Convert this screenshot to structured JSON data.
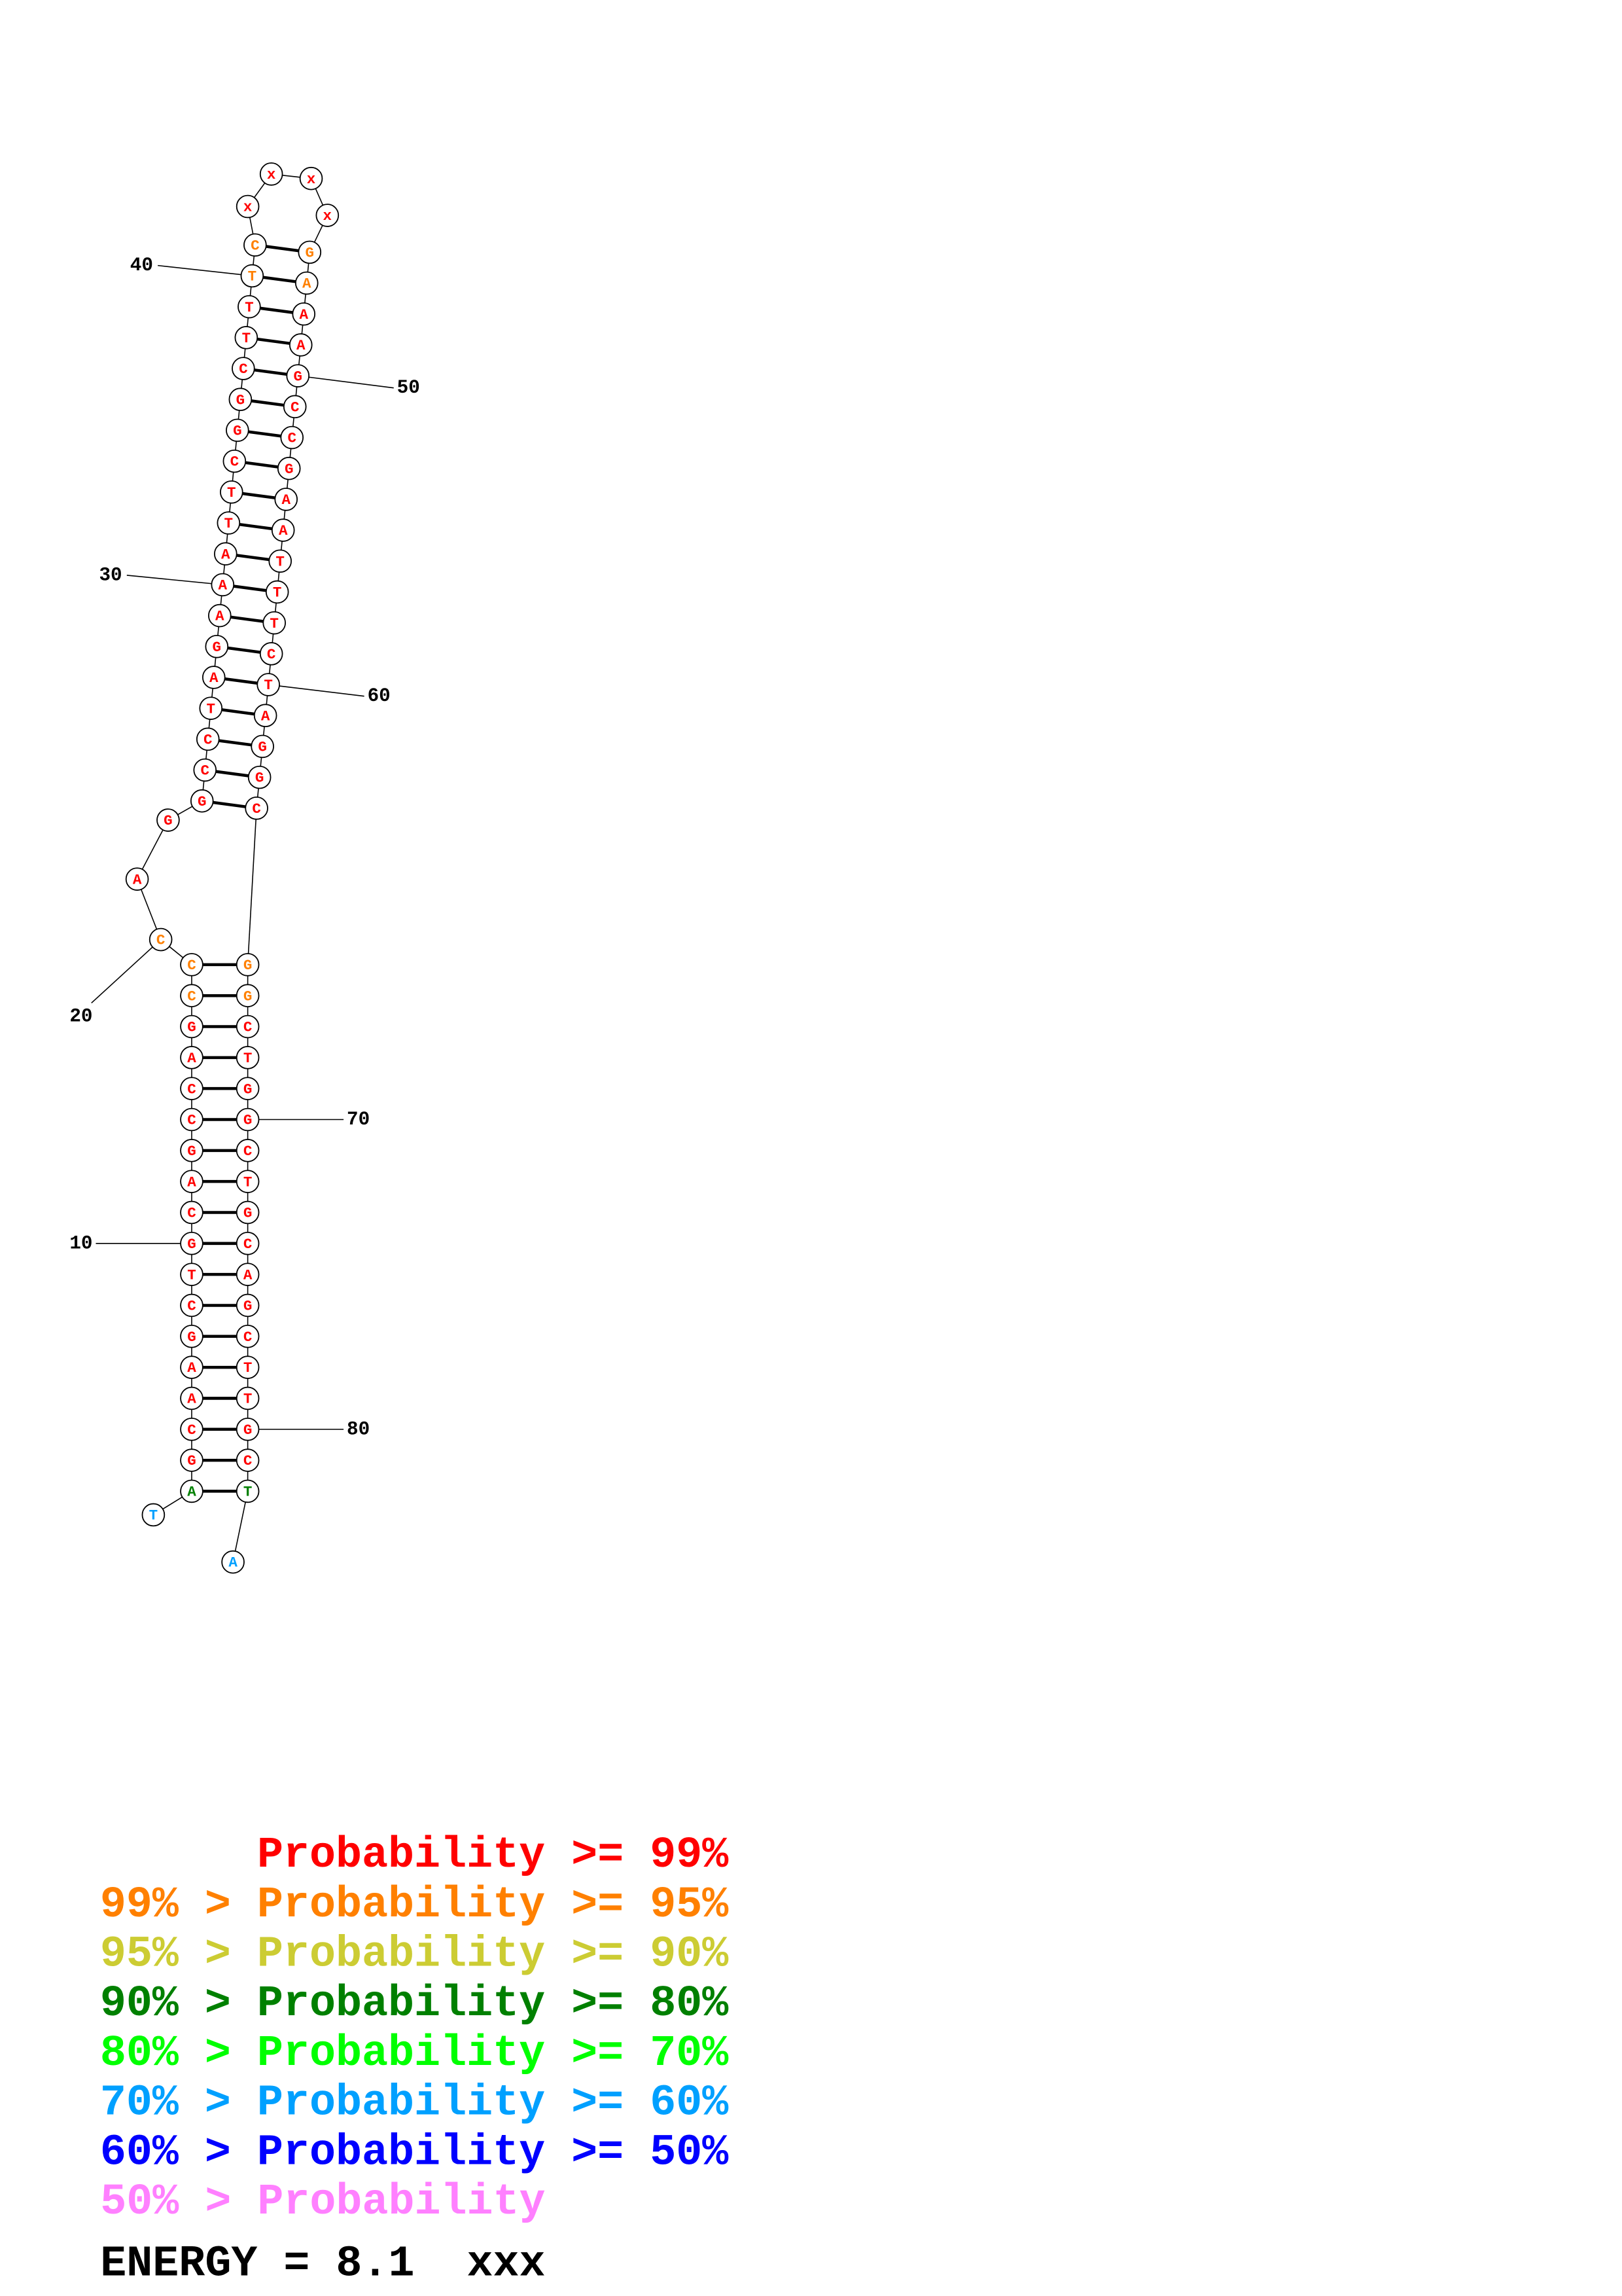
{
  "nucleotides": [
    {
      "base": "T",
      "color": "#00a0ff"
    },
    {
      "base": "A",
      "color": "#008000"
    },
    {
      "base": "G",
      "color": "#ff0000"
    },
    {
      "base": "C",
      "color": "#ff0000"
    },
    {
      "base": "A",
      "color": "#ff0000"
    },
    {
      "base": "A",
      "color": "#ff0000"
    },
    {
      "base": "G",
      "color": "#ff0000"
    },
    {
      "base": "C",
      "color": "#ff0000"
    },
    {
      "base": "T",
      "color": "#ff0000"
    },
    {
      "base": "G",
      "color": "#ff0000"
    },
    {
      "base": "C",
      "color": "#ff0000"
    },
    {
      "base": "A",
      "color": "#ff0000"
    },
    {
      "base": "G",
      "color": "#ff0000"
    },
    {
      "base": "C",
      "color": "#ff0000"
    },
    {
      "base": "C",
      "color": "#ff0000"
    },
    {
      "base": "A",
      "color": "#ff0000"
    },
    {
      "base": "G",
      "color": "#ff0000"
    },
    {
      "base": "C",
      "color": "#ff8000"
    },
    {
      "base": "C",
      "color": "#ff8000"
    },
    {
      "base": "C",
      "color": "#ff8000"
    },
    {
      "base": "A",
      "color": "#ff0000"
    },
    {
      "base": "G",
      "color": "#ff0000"
    },
    {
      "base": "G",
      "color": "#ff0000"
    },
    {
      "base": "C",
      "color": "#ff0000"
    },
    {
      "base": "C",
      "color": "#ff0000"
    },
    {
      "base": "T",
      "color": "#ff0000"
    },
    {
      "base": "A",
      "color": "#ff0000"
    },
    {
      "base": "G",
      "color": "#ff0000"
    },
    {
      "base": "A",
      "color": "#ff0000"
    },
    {
      "base": "A",
      "color": "#ff0000"
    },
    {
      "base": "A",
      "color": "#ff0000"
    },
    {
      "base": "T",
      "color": "#ff0000"
    },
    {
      "base": "T",
      "color": "#ff0000"
    },
    {
      "base": "C",
      "color": "#ff0000"
    },
    {
      "base": "G",
      "color": "#ff0000"
    },
    {
      "base": "G",
      "color": "#ff0000"
    },
    {
      "base": "C",
      "color": "#ff0000"
    },
    {
      "base": "T",
      "color": "#ff0000"
    },
    {
      "base": "T",
      "color": "#ff0000"
    },
    {
      "base": "T",
      "color": "#ff8000"
    },
    {
      "base": "C",
      "color": "#ff8000"
    },
    {
      "base": "x",
      "color": "#ff0000"
    },
    {
      "base": "x",
      "color": "#ff0000"
    },
    {
      "base": "x",
      "color": "#ff0000"
    },
    {
      "base": "x",
      "color": "#ff0000"
    },
    {
      "base": "G",
      "color": "#ff8000"
    },
    {
      "base": "A",
      "color": "#ff8000"
    },
    {
      "base": "A",
      "color": "#ff0000"
    },
    {
      "base": "A",
      "color": "#ff0000"
    },
    {
      "base": "G",
      "color": "#ff0000"
    },
    {
      "base": "C",
      "color": "#ff0000"
    },
    {
      "base": "C",
      "color": "#ff0000"
    },
    {
      "base": "G",
      "color": "#ff0000"
    },
    {
      "base": "A",
      "color": "#ff0000"
    },
    {
      "base": "A",
      "color": "#ff0000"
    },
    {
      "base": "T",
      "color": "#ff0000"
    },
    {
      "base": "T",
      "color": "#ff0000"
    },
    {
      "base": "T",
      "color": "#ff0000"
    },
    {
      "base": "C",
      "color": "#ff0000"
    },
    {
      "base": "T",
      "color": "#ff0000"
    },
    {
      "base": "A",
      "color": "#ff0000"
    },
    {
      "base": "G",
      "color": "#ff0000"
    },
    {
      "base": "G",
      "color": "#ff0000"
    },
    {
      "base": "C",
      "color": "#ff0000"
    },
    {
      "base": "G",
      "color": "#ff8000"
    },
    {
      "base": "G",
      "color": "#ff8000"
    },
    {
      "base": "C",
      "color": "#ff0000"
    },
    {
      "base": "T",
      "color": "#ff0000"
    },
    {
      "base": "G",
      "color": "#ff0000"
    },
    {
      "base": "G",
      "color": "#ff0000"
    },
    {
      "base": "C",
      "color": "#ff0000"
    },
    {
      "base": "T",
      "color": "#ff0000"
    },
    {
      "base": "G",
      "color": "#ff0000"
    },
    {
      "base": "C",
      "color": "#ff0000"
    },
    {
      "base": "A",
      "color": "#ff0000"
    },
    {
      "base": "G",
      "color": "#ff0000"
    },
    {
      "base": "C",
      "color": "#ff0000"
    },
    {
      "base": "T",
      "color": "#ff0000"
    },
    {
      "base": "T",
      "color": "#ff0000"
    },
    {
      "base": "G",
      "color": "#ff0000"
    },
    {
      "base": "C",
      "color": "#ff0000"
    },
    {
      "base": "T",
      "color": "#008000"
    },
    {
      "base": "A",
      "color": "#00a0ff"
    }
  ],
  "position_labels": [
    "10",
    "20",
    "30",
    "40",
    "50",
    "60",
    "70",
    "80"
  ],
  "legend": [
    {
      "text": "Probability >= 99%",
      "color": "#ff0000"
    },
    {
      "text": "99% > Probability >= 95%",
      "color": "#ff8000"
    },
    {
      "text": "95% > Probability >= 90%",
      "color": "#cccc33"
    },
    {
      "text": "90% > Probability >= 80%",
      "color": "#008000"
    },
    {
      "text": "80% > Probability >= 70%",
      "color": "#00ff00"
    },
    {
      "text": "70% > Probability >= 60%",
      "color": "#00a0ff"
    },
    {
      "text": "60% > Probability >= 50%",
      "color": "#0000ff"
    },
    {
      "text": "50% > Probability",
      "color": "#ff80ff"
    }
  ],
  "energy": "ENERGY = 8.1  xxx"
}
